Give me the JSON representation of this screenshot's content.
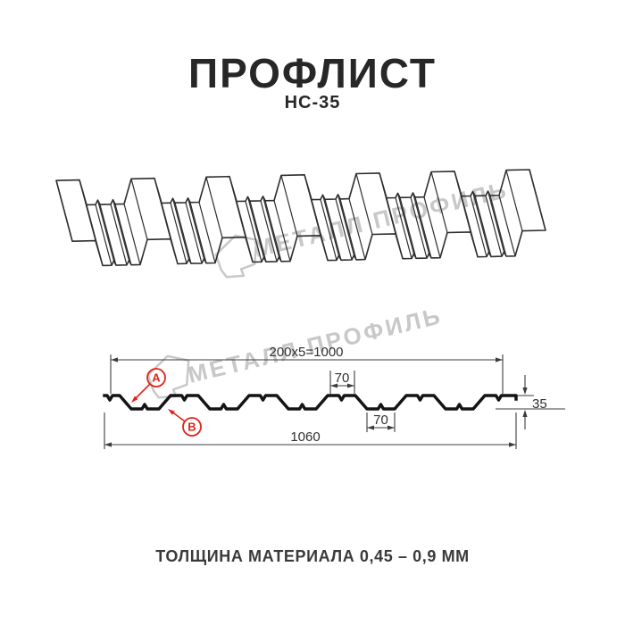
{
  "colors": {
    "accent_red": "#e2231a",
    "watermark_gray": "#c8c8c8",
    "ink": "#272727",
    "drawing_line": "#2d2d2d",
    "dimension_line": "#3c3c3c"
  },
  "header": {
    "title": "ПРОФЛИСТ",
    "subtitle": "НС-35"
  },
  "watermark": {
    "text": "МЕТАЛЛ ПРОФИЛЬ"
  },
  "section": {
    "dim_top": "200x5=1000",
    "dim_top_flange": "70",
    "dim_bottom_flange": "70",
    "dim_total": "1060",
    "dim_height": "35",
    "label_a": "А",
    "label_b": "В"
  },
  "footer": {
    "thickness": "ТОЛЩИНА МАТЕРИАЛА 0,45 – 0,9 ММ"
  }
}
